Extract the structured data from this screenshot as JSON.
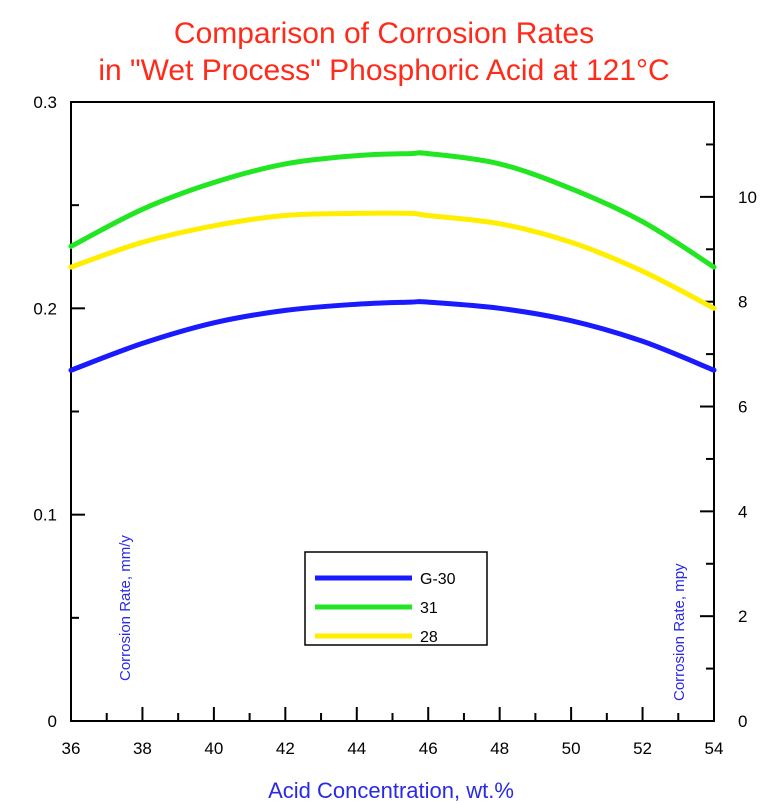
{
  "chart_data": {
    "type": "line",
    "title": "Comparison of Corrosion Rates",
    "subtitle": "in \"Wet Process\" Phosphoric Acid at 121°C",
    "xlabel": "Acid Concentration, wt.%",
    "ylabel_left": "Corrosion Rate, mm/y",
    "ylabel_right": "Corrosion Rate, mpy",
    "xlim": [
      36,
      54
    ],
    "ylim_left": [
      0,
      0.3
    ],
    "ylim_right": [
      0,
      11.81
    ],
    "x_ticks": [
      36,
      38,
      40,
      42,
      44,
      46,
      48,
      50,
      52,
      54
    ],
    "x_tick_labels": [
      "36",
      "38",
      "40",
      "42",
      "44",
      "46",
      "48",
      "50",
      "52",
      "54"
    ],
    "y_left_ticks": [
      0,
      0.1,
      0.2,
      0.3
    ],
    "y_left_tick_labels": [
      "0",
      "0.1",
      "0.2",
      "0.3"
    ],
    "y_right_ticks": [
      0,
      2,
      4,
      6,
      8,
      10
    ],
    "y_right_tick_labels": [
      "0",
      "2",
      "4",
      "6",
      "8",
      "10"
    ],
    "grid": false,
    "legend_position": "bottom-center",
    "x": [
      36,
      38,
      40,
      42,
      44,
      45.5,
      46,
      48,
      50,
      52,
      54
    ],
    "series": [
      {
        "name": "G-30",
        "color": "#1a1aff",
        "values": [
          0.17,
          0.183,
          0.193,
          0.199,
          0.202,
          0.203,
          0.203,
          0.2,
          0.194,
          0.184,
          0.17
        ]
      },
      {
        "name": "31",
        "color": "#22e622",
        "values": [
          0.23,
          0.248,
          0.261,
          0.27,
          0.274,
          0.275,
          0.275,
          0.27,
          0.258,
          0.242,
          0.22
        ]
      },
      {
        "name": "28",
        "color": "#ffee00",
        "values": [
          0.22,
          0.232,
          0.24,
          0.245,
          0.246,
          0.246,
          0.245,
          0.241,
          0.232,
          0.218,
          0.2
        ]
      }
    ]
  }
}
